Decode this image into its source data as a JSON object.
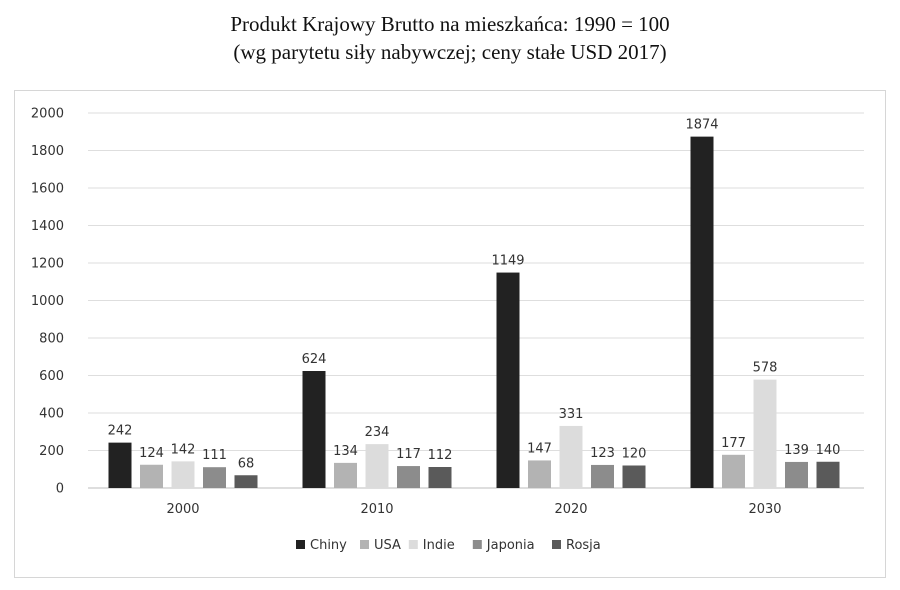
{
  "title_line1": "Produkt Krajowy Brutto na mieszkańca: 1990 = 100",
  "title_line2": "(wg parytetu siły nabywczej; ceny stałe USD 2017)",
  "chart_data": {
    "type": "bar",
    "title": "Produkt Krajowy Brutto na mieszkańca: 1990 = 100",
    "subtitle": "(wg parytetu siły nabywczej; ceny stałe USD 2017)",
    "xlabel": "",
    "ylabel": "",
    "ylim": [
      0,
      2000
    ],
    "yticks": [
      0,
      200,
      400,
      600,
      800,
      1000,
      1200,
      1400,
      1600,
      1800,
      2000
    ],
    "grid": true,
    "legend_position": "bottom",
    "categories": [
      "2000",
      "2010",
      "2020",
      "2030"
    ],
    "series": [
      {
        "name": "Chiny",
        "color": "#222222",
        "values": [
          242,
          624,
          1149,
          1874
        ]
      },
      {
        "name": "USA",
        "color": "#b3b3b3",
        "values": [
          124,
          134,
          147,
          177
        ]
      },
      {
        "name": "Indie",
        "color": "#dcdcdc",
        "values": [
          142,
          234,
          331,
          578
        ]
      },
      {
        "name": "Japonia",
        "color": "#8c8c8c",
        "values": [
          111,
          117,
          123,
          139
        ]
      },
      {
        "name": "Rosja",
        "color": "#5a5a5a",
        "values": [
          68,
          112,
          120,
          140
        ]
      }
    ]
  }
}
